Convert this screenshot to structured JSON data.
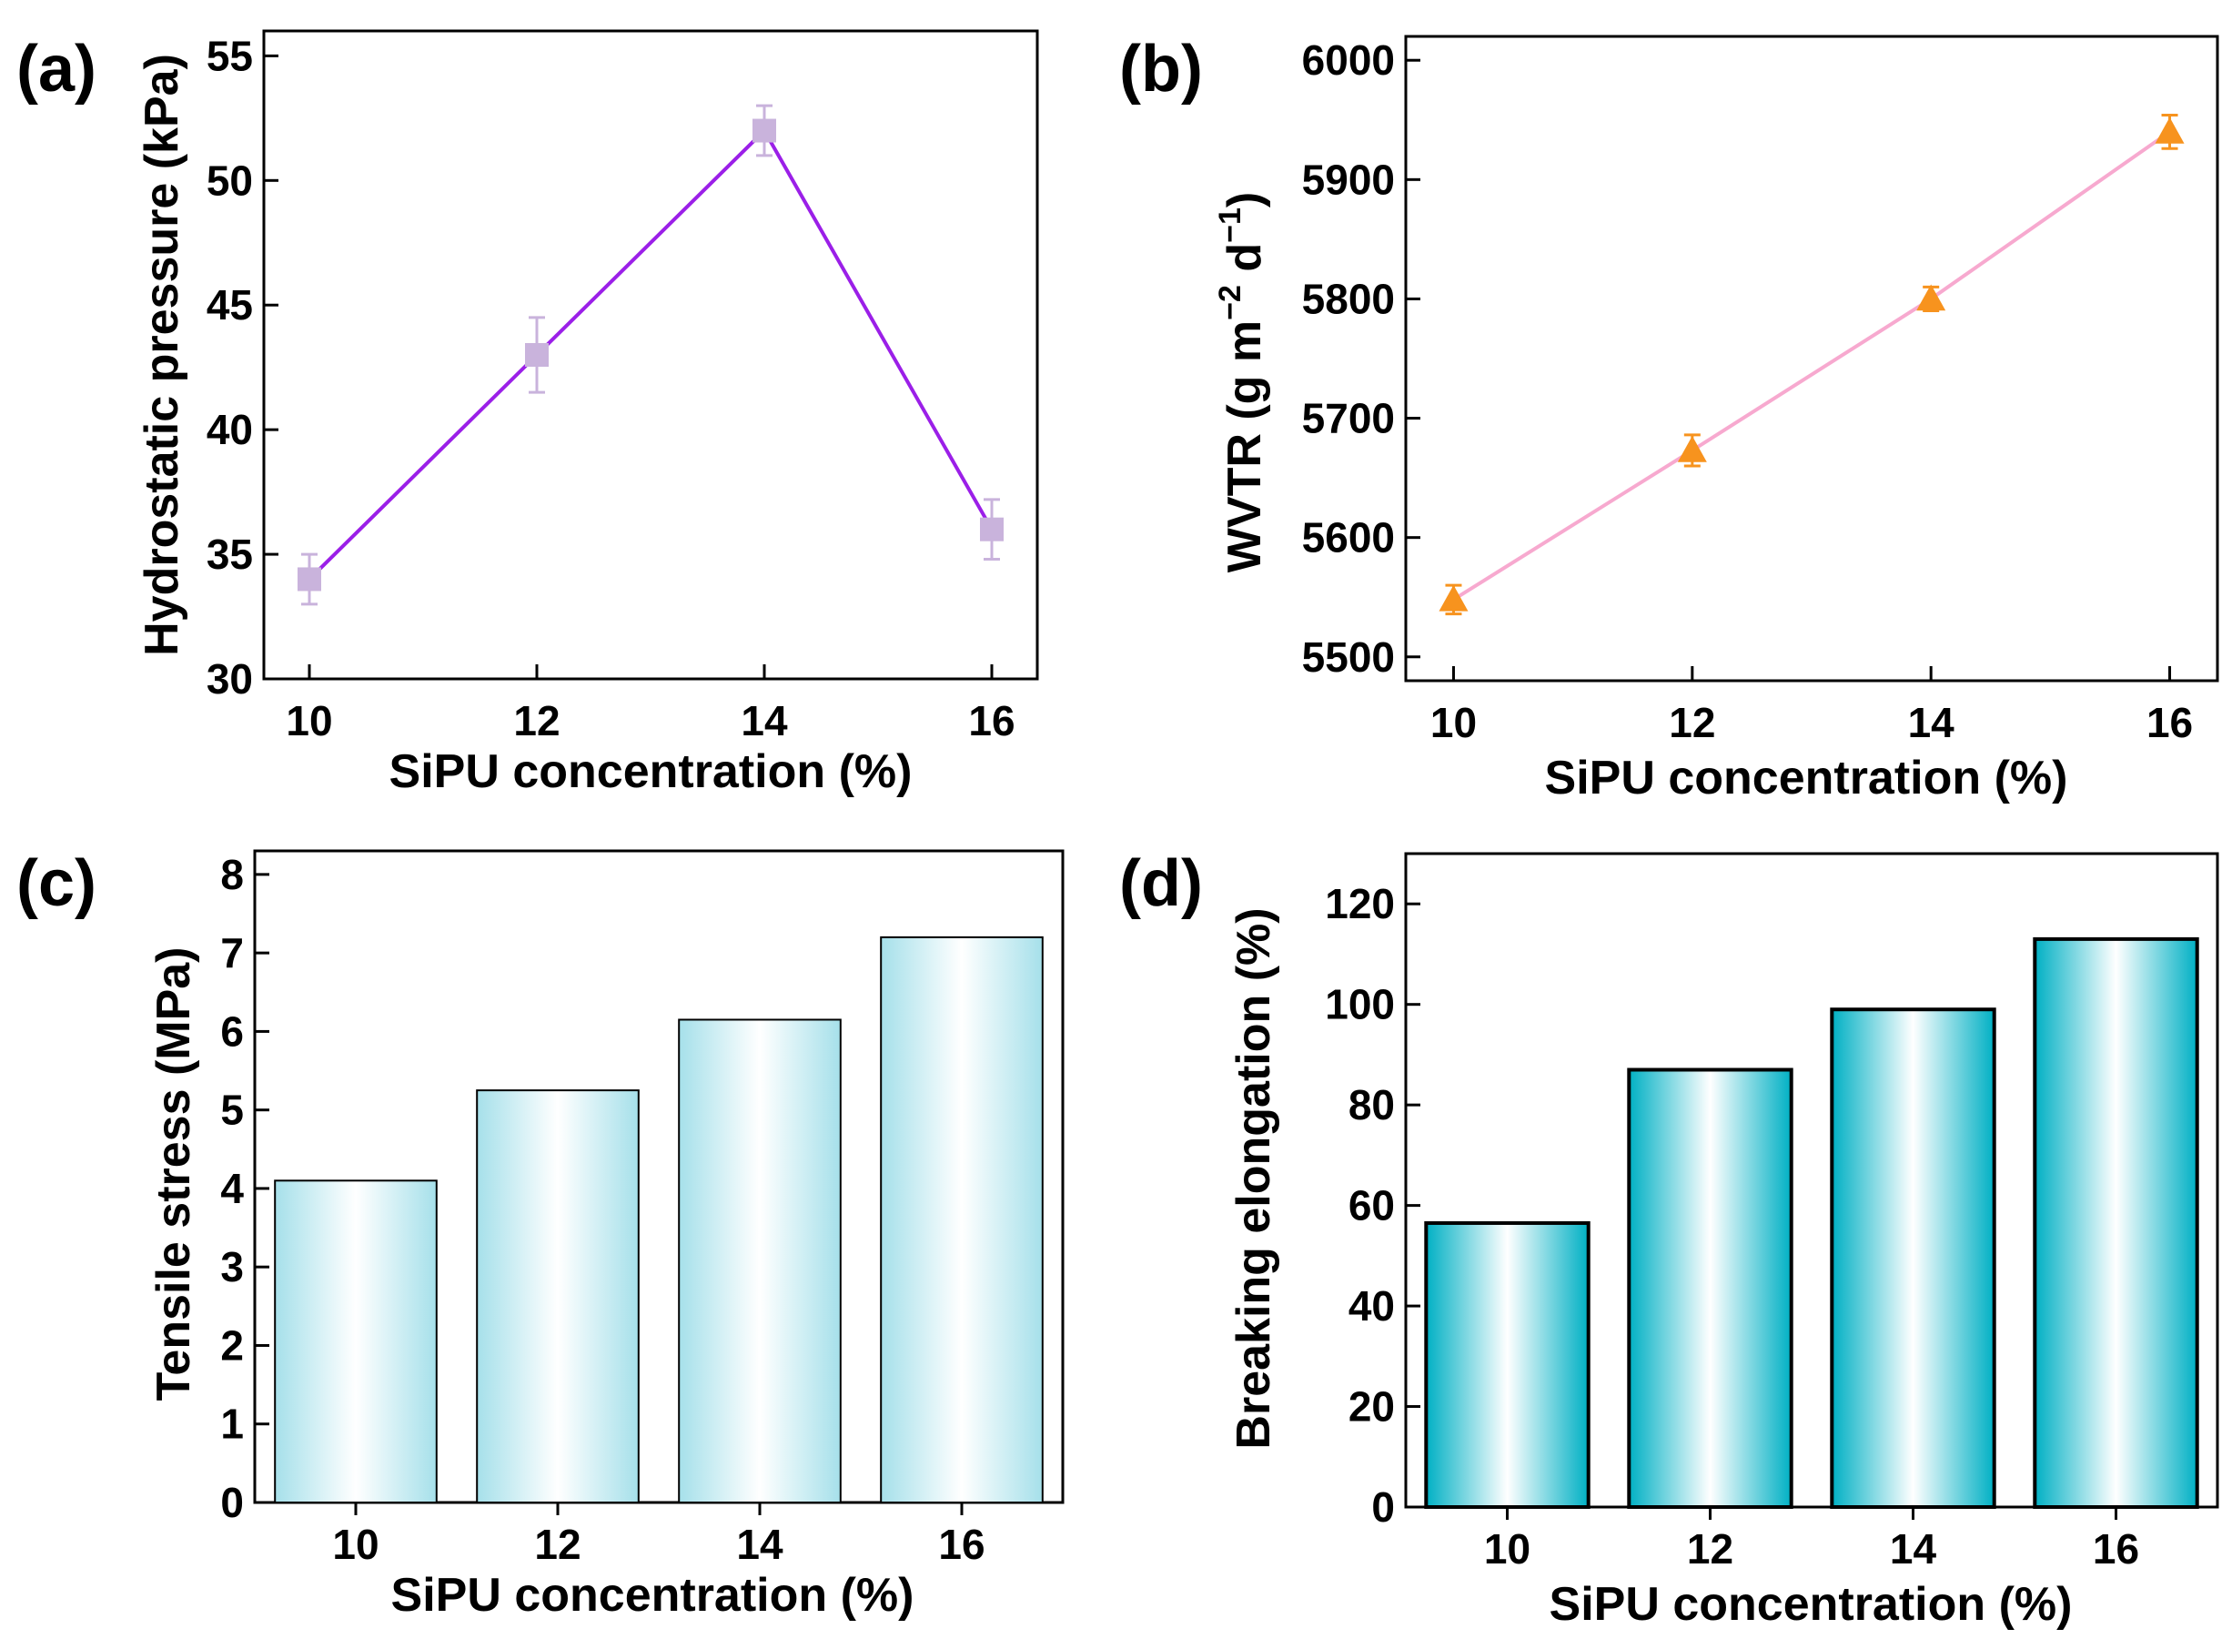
{
  "chart_data": [
    {
      "panel": "(a)",
      "type": "line",
      "x": [
        10,
        12,
        14,
        16
      ],
      "values": [
        34,
        43,
        52,
        36
      ],
      "errors": [
        1.0,
        1.5,
        1.0,
        1.2
      ],
      "xlabel": "SiPU concentration (%)",
      "ylabel": "Hydrostatic pressure (kPa)",
      "xlim": [
        9.6,
        16.4
      ],
      "ylim": [
        30,
        56
      ],
      "xticks": [
        "10",
        "12",
        "14",
        "16"
      ],
      "yticks": [
        "30",
        "35",
        "40",
        "45",
        "50",
        "55"
      ],
      "line_color": "#9b1fe8",
      "marker": "square",
      "marker_color": "#c9b3dc"
    },
    {
      "panel": "(b)",
      "type": "line",
      "x": [
        10,
        12,
        14,
        16
      ],
      "values": [
        5548,
        5673,
        5800,
        5940
      ],
      "errors": [
        12,
        13,
        10,
        14
      ],
      "xlabel": "SiPU concentration (%)",
      "ylabel_main": "WVTR (g m",
      "ylabel_sup1": "−2",
      "ylabel_mid": " d",
      "ylabel_sup2": "−1",
      "ylabel_end": ")",
      "xlim": [
        9.6,
        16.4
      ],
      "ylim": [
        5480,
        6020
      ],
      "xticks": [
        "10",
        "12",
        "14",
        "16"
      ],
      "yticks": [
        "5500",
        "5600",
        "5700",
        "5800",
        "5900",
        "6000"
      ],
      "line_color": "#f7a9cf",
      "marker": "triangle",
      "marker_color": "#f7931e"
    },
    {
      "panel": "(c)",
      "type": "bar",
      "categories": [
        "10",
        "12",
        "14",
        "16"
      ],
      "values": [
        4.1,
        5.25,
        6.15,
        7.2
      ],
      "xlabel": "SiPU concentration (%)",
      "ylabel": "Tensile stress (MPa)",
      "ylim": [
        0,
        8.3
      ],
      "yticks": [
        "0",
        "1",
        "2",
        "3",
        "4",
        "5",
        "6",
        "7",
        "8"
      ],
      "bar_color": "#9fdde8"
    },
    {
      "panel": "(d)",
      "type": "bar",
      "categories": [
        "10",
        "12",
        "14",
        "16"
      ],
      "values": [
        56.5,
        87,
        99,
        113
      ],
      "xlabel": "SiPU concentration (%)",
      "ylabel": "Breaking elongation (%)",
      "ylim": [
        0,
        130
      ],
      "yticks": [
        "0",
        "20",
        "40",
        "60",
        "80",
        "100",
        "120"
      ],
      "bar_color": "#00b3c6"
    }
  ]
}
